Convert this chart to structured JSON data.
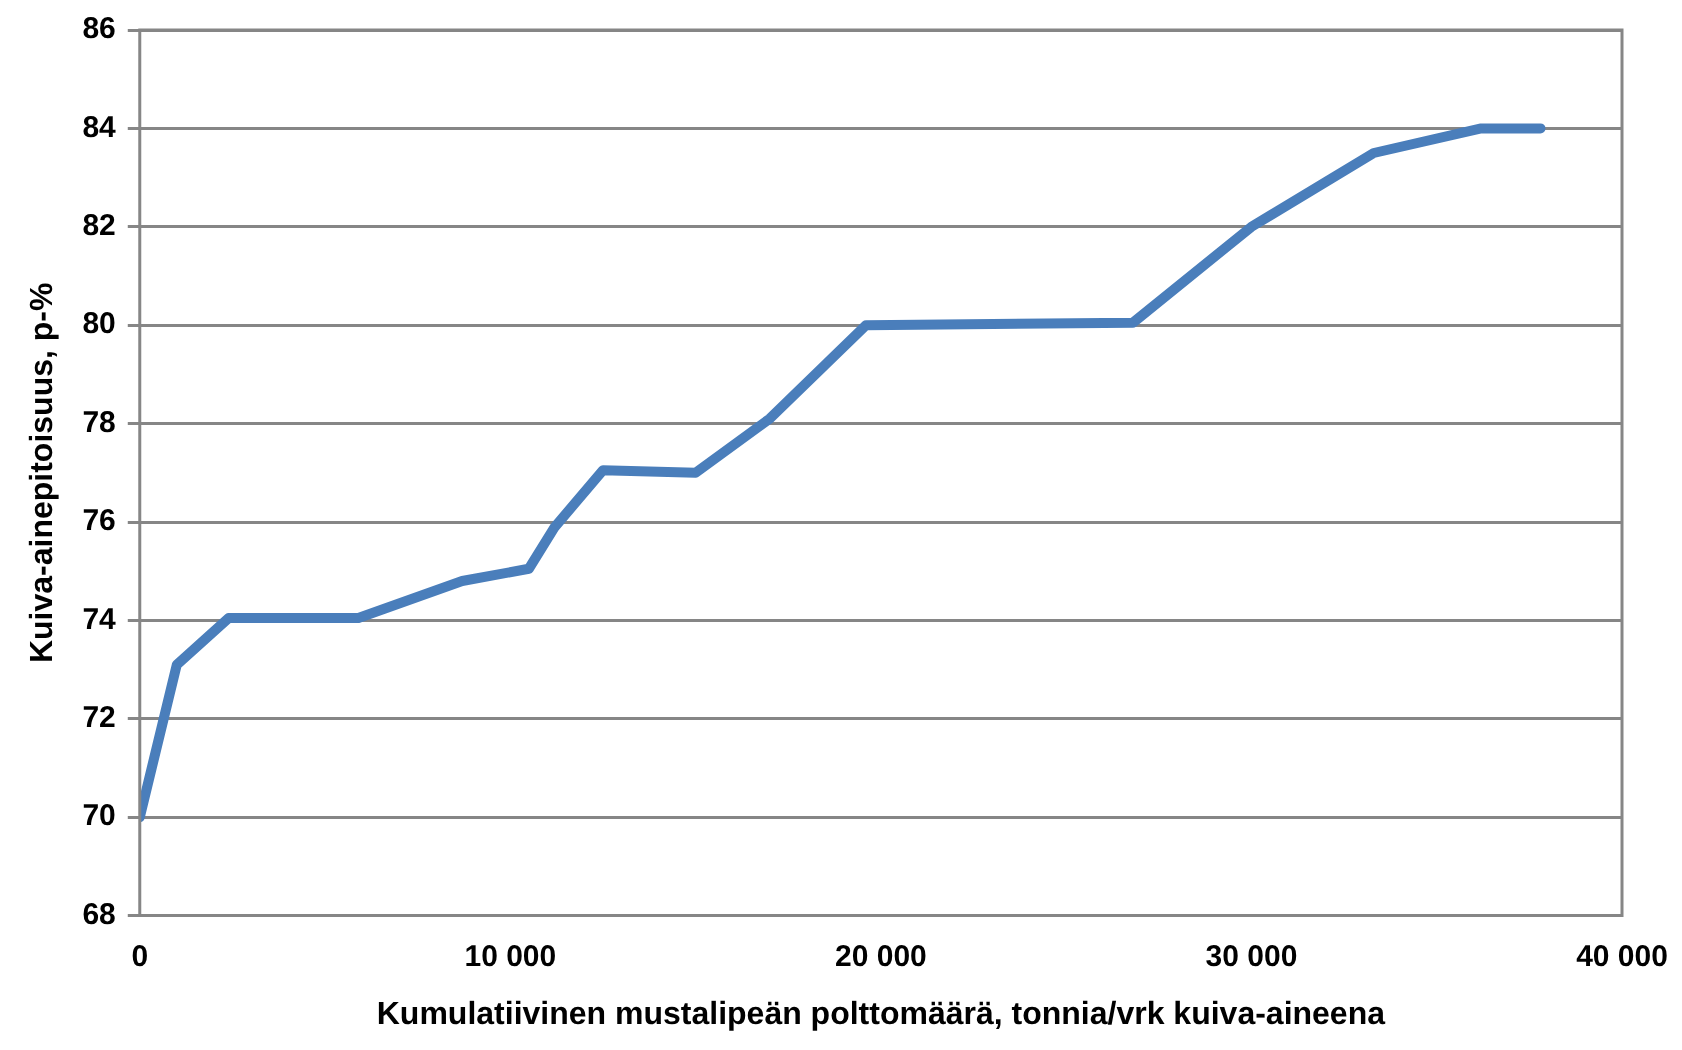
{
  "chart_data": {
    "type": "line",
    "xlabel": "Kumulatiivinen mustalipeän polttomäärä, tonnia/vrk kuiva-aineena",
    "ylabel": "Kuiva-ainepitoisuus, p-%",
    "x": [
      0,
      1000,
      2400,
      5900,
      8700,
      10500,
      11200,
      12500,
      15000,
      17000,
      19600,
      26800,
      30000,
      33300,
      36200,
      37800
    ],
    "series": [
      {
        "color": "#4a7ebb",
        "values": [
          70,
          73.1,
          74.05,
          74.05,
          74.8,
          75.05,
          75.9,
          77.05,
          77.0,
          78.1,
          80.0,
          80.05,
          82.0,
          83.5,
          84.0,
          84.0
        ]
      }
    ],
    "xlim": [
      0,
      40000
    ],
    "xticks": [
      0,
      {
        "value": 10000,
        "label": "10 000"
      },
      {
        "value": 20000,
        "label": "20 000"
      },
      {
        "value": 30000,
        "label": "30 000"
      },
      {
        "value": 40000,
        "label": "40 000"
      }
    ],
    "ylim": [
      68,
      86
    ],
    "yticks": [
      68,
      70,
      72,
      74,
      76,
      78,
      80,
      82,
      84,
      86
    ],
    "grid": "y",
    "marker": "none",
    "line_style": "solid",
    "legend": false
  }
}
